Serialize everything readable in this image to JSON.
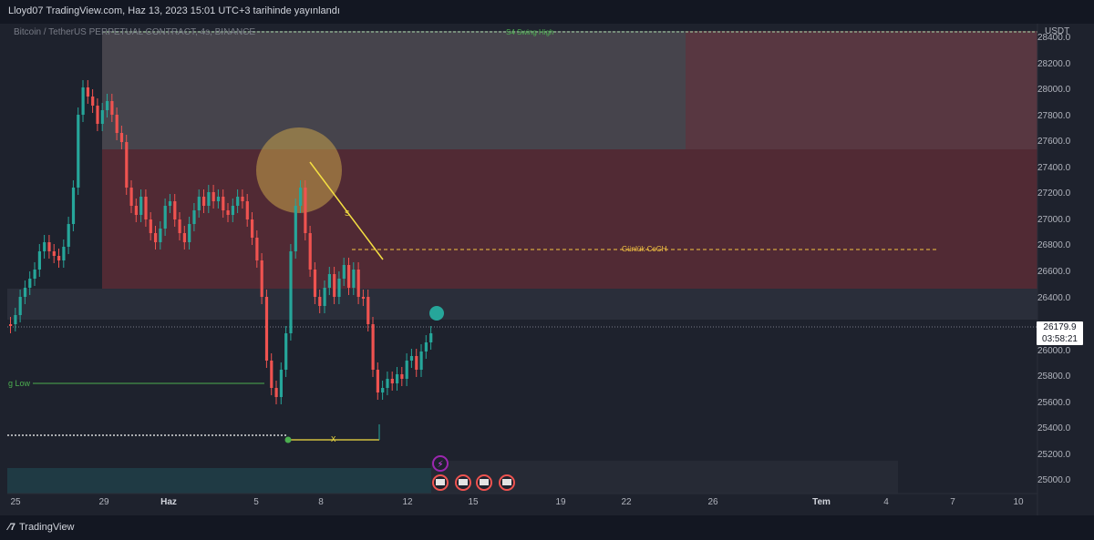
{
  "header": {
    "publish_text": "Lloyd07 TradingView.com, Haz 13, 2023 15:01 UTC+3 tarihinde yayınlandı"
  },
  "symbol_info": {
    "text": "Bitcoin / TetherUS PERPETUAL CONTRACT, 4s, BINANCE"
  },
  "price_axis": {
    "currency": "USDT",
    "ticks": [
      "28400.0",
      "28200.0",
      "28000.0",
      "27800.0",
      "27600.0",
      "27400.0",
      "27200.0",
      "27000.0",
      "26800.0",
      "26600.0",
      "26400.0",
      "26000.0",
      "25800.0",
      "25600.0",
      "25400.0",
      "25200.0",
      "25000.0"
    ],
    "current_price": "26179.9",
    "countdown": "03:58:21"
  },
  "time_axis": {
    "labels": [
      {
        "text": "25",
        "bold": false
      },
      {
        "text": "29",
        "bold": false
      },
      {
        "text": "Haz",
        "bold": true
      },
      {
        "text": "5",
        "bold": false
      },
      {
        "text": "8",
        "bold": false
      },
      {
        "text": "12",
        "bold": false
      },
      {
        "text": "15",
        "bold": false
      },
      {
        "text": "19",
        "bold": false
      },
      {
        "text": "22",
        "bold": false
      },
      {
        "text": "26",
        "bold": false
      },
      {
        "text": "Tem",
        "bold": true
      },
      {
        "text": "4",
        "bold": false
      },
      {
        "text": "7",
        "bold": false
      },
      {
        "text": "10",
        "bold": false
      }
    ]
  },
  "annotations": {
    "swing_high": "S4 Swing High",
    "coch": "Günlük CoCH",
    "swing_low": "g Low",
    "x_mark": "X",
    "s_mark": "S"
  },
  "colors": {
    "bull": "#26a69a",
    "bear": "#ef5350",
    "background": "#1e222d",
    "supply_zone": "#6b2f3a",
    "coch_line": "#f5c542",
    "swing_line": "#4caf50"
  },
  "footer": {
    "brand": "TradingView"
  }
}
